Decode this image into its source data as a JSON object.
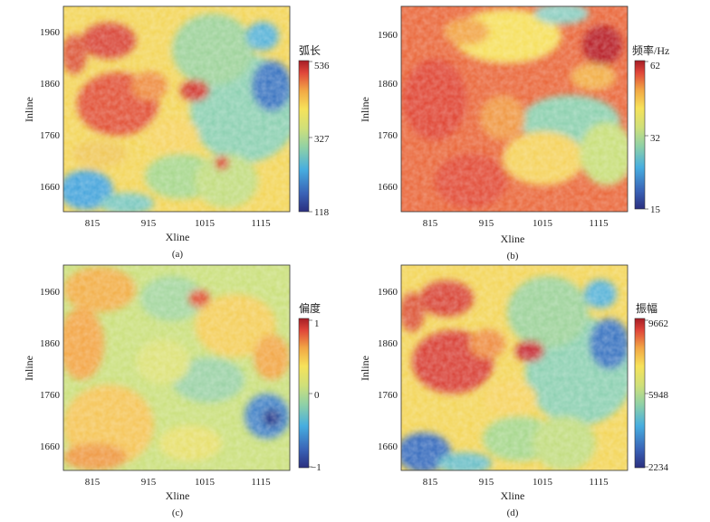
{
  "figure": {
    "panels": [
      {
        "label": "(a)",
        "colorbar": {
          "title": "弧长",
          "ticks": [
            "536",
            "327",
            "118"
          ],
          "min": 118,
          "max": 536
        }
      },
      {
        "label": "(b)",
        "colorbar": {
          "title": "频率/Hz",
          "ticks": [
            "62",
            "32",
            "15"
          ],
          "min": 15,
          "max": 62
        }
      },
      {
        "label": "(c)",
        "colorbar": {
          "title": "偏度",
          "ticks": [
            "1",
            "0",
            "−1"
          ],
          "min": -1,
          "max": 1
        }
      },
      {
        "label": "(d)",
        "colorbar": {
          "title": "振幅",
          "ticks": [
            "9662",
            "5948",
            "2234"
          ],
          "min": 2234,
          "max": 9662
        }
      }
    ]
  },
  "chart_data": [
    {
      "type": "heatmap",
      "panel": "(a)",
      "xlabel": "Xline",
      "ylabel": "Inline",
      "xticks": [
        "815",
        "915",
        "1015",
        "1115"
      ],
      "yticks": [
        "1960",
        "1860",
        "1760",
        "1660"
      ],
      "xlim": [
        760,
        1160
      ],
      "ylim": [
        1610,
        2010
      ],
      "colorbar_title": "弧长",
      "value_range": [
        118,
        536
      ],
      "colormap": "jet"
    },
    {
      "type": "heatmap",
      "panel": "(b)",
      "xlabel": "Xline",
      "ylabel": "Inline",
      "xticks": [
        "815",
        "915",
        "1015",
        "1115"
      ],
      "yticks": [
        "1960",
        "1860",
        "1760",
        "1660"
      ],
      "xlim": [
        760,
        1160
      ],
      "ylim": [
        1610,
        2010
      ],
      "colorbar_title": "频率/Hz",
      "value_range": [
        15,
        62
      ],
      "colormap": "jet"
    },
    {
      "type": "heatmap",
      "panel": "(c)",
      "xlabel": "Xline",
      "ylabel": "Inline",
      "xticks": [
        "815",
        "915",
        "1015",
        "1115"
      ],
      "yticks": [
        "1960",
        "1860",
        "1760",
        "1660"
      ],
      "xlim": [
        760,
        1160
      ],
      "ylim": [
        1610,
        2010
      ],
      "colorbar_title": "偏度",
      "value_range": [
        -1,
        1
      ],
      "colormap": "jet"
    },
    {
      "type": "heatmap",
      "panel": "(d)",
      "xlabel": "Xline",
      "ylabel": "Inline",
      "xticks": [
        "815",
        "915",
        "1015",
        "1115"
      ],
      "yticks": [
        "1960",
        "1860",
        "1760",
        "1660"
      ],
      "xlim": [
        760,
        1160
      ],
      "ylim": [
        1610,
        2010
      ],
      "colorbar_title": "振幅",
      "value_range": [
        2234,
        9662
      ],
      "colormap": "jet"
    }
  ]
}
